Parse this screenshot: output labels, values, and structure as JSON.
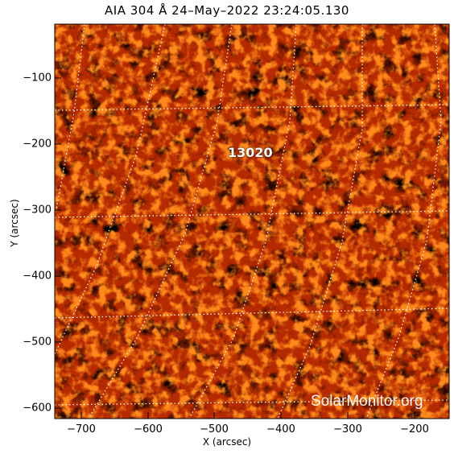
{
  "image": {
    "title": "AIA 304 Å 24–May–2022 23:24:05.130",
    "xlabel": "X (arcsec)",
    "ylabel": "Y (arcsec)",
    "x_ticks": [
      "−700",
      "−600",
      "−500",
      "−400",
      "−300",
      "−200"
    ],
    "y_ticks": [
      "−100",
      "−200",
      "−300",
      "−400",
      "−500",
      "−600"
    ],
    "active_region_label": "13020",
    "watermark": "SolarMonitor.org",
    "colors": {
      "background": "#000000",
      "emission_low": "#7a0a00",
      "emission_mid": "#d23a00",
      "emission_high": "#ffb030",
      "grid": "#ffffff"
    }
  }
}
